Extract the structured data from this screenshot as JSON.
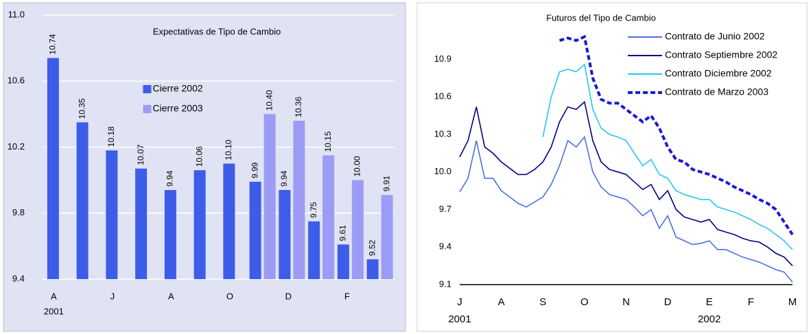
{
  "chart_data": [
    {
      "type": "bar",
      "title": "Expectativas de Tipo de Cambio",
      "categories": [
        "A",
        null,
        "J",
        null,
        "A",
        null,
        "O",
        null,
        "D",
        null,
        "F",
        null
      ],
      "year_label": "2001",
      "series": [
        {
          "name": "Cierre 2002",
          "color": "#3d5ce8",
          "values": [
            10.74,
            10.35,
            10.18,
            10.07,
            9.94,
            10.06,
            10.1,
            9.99,
            9.94,
            9.75,
            9.61,
            9.52
          ],
          "value_labels": [
            "10.74",
            "10.35",
            "10.18",
            "10.07",
            "9.94",
            "10.06",
            "10.10",
            "9.99",
            "9.94",
            "9.75",
            "9.61",
            "9.52"
          ]
        },
        {
          "name": "Cierre 2003",
          "color": "#9c9cf6",
          "values": [
            null,
            null,
            null,
            null,
            null,
            null,
            null,
            10.4,
            10.36,
            10.15,
            10.0,
            9.91
          ],
          "value_labels": [
            null,
            null,
            null,
            null,
            null,
            null,
            null,
            "10.40",
            "10.36",
            "10.15",
            "10.00",
            "9.91"
          ]
        }
      ],
      "ylim": [
        9.4,
        11.0
      ],
      "yticks": [
        9.4,
        9.8,
        10.2,
        10.6,
        {
          "value": 11.0,
          "label": "11.0"
        }
      ],
      "grid": true,
      "legend": "upper center"
    },
    {
      "type": "line",
      "title": "Futuros del Tipo de Cambio",
      "categories": [
        "J",
        null,
        null,
        null,
        null,
        "A",
        null,
        null,
        null,
        null,
        "S",
        null,
        null,
        null,
        null,
        "O",
        null,
        null,
        null,
        null,
        "N",
        null,
        null,
        null,
        null,
        "D",
        null,
        null,
        null,
        null,
        "E",
        null,
        null,
        null,
        null,
        "F",
        null,
        null,
        null,
        null,
        "M"
      ],
      "year_labels": [
        {
          "index": 0,
          "label": "2001"
        },
        {
          "index": 30,
          "label": "2002"
        }
      ],
      "series": [
        {
          "name": "Contrato de Junio 2002",
          "color": "#4a70e2",
          "style": "solid",
          "values": [
            9.84,
            9.95,
            10.25,
            9.95,
            9.95,
            9.85,
            9.8,
            9.75,
            9.72,
            9.76,
            9.8,
            9.9,
            10.05,
            10.25,
            10.2,
            10.28,
            10.0,
            9.88,
            9.82,
            9.8,
            9.78,
            9.72,
            9.65,
            9.7,
            9.55,
            9.65,
            9.48,
            9.45,
            9.42,
            9.43,
            9.45,
            9.38,
            9.38,
            9.35,
            9.32,
            9.3,
            9.28,
            9.25,
            9.22,
            9.2,
            9.12
          ]
        },
        {
          "name": "Contrato Septiembre 2002",
          "color": "#000080",
          "style": "solid",
          "values": [
            10.12,
            10.25,
            10.52,
            10.2,
            10.15,
            10.08,
            10.03,
            9.98,
            9.98,
            10.02,
            10.08,
            10.2,
            10.4,
            10.52,
            10.5,
            10.56,
            10.25,
            10.08,
            10.02,
            10.0,
            9.98,
            9.92,
            9.86,
            9.9,
            9.78,
            9.85,
            9.7,
            9.64,
            9.62,
            9.6,
            9.62,
            9.54,
            9.52,
            9.5,
            9.47,
            9.45,
            9.44,
            9.4,
            9.35,
            9.32,
            9.25
          ]
        },
        {
          "name": "Contrato Diciembre 2002",
          "color": "#22c8ec",
          "style": "solid",
          "values": [
            null,
            null,
            null,
            null,
            null,
            null,
            null,
            null,
            null,
            null,
            10.28,
            10.6,
            10.8,
            10.82,
            10.8,
            10.86,
            10.5,
            10.35,
            10.3,
            10.28,
            10.25,
            10.15,
            10.05,
            10.1,
            9.98,
            9.95,
            9.85,
            9.82,
            9.8,
            9.78,
            9.78,
            9.72,
            9.7,
            9.68,
            9.65,
            9.62,
            9.58,
            9.55,
            9.5,
            9.45,
            9.38
          ]
        },
        {
          "name": "Contrato de Marzo 2003",
          "color": "#1a1ad6",
          "style": "dashed",
          "values": [
            null,
            null,
            null,
            null,
            null,
            null,
            null,
            null,
            null,
            null,
            null,
            null,
            11.05,
            11.07,
            11.05,
            11.08,
            10.75,
            10.58,
            10.55,
            10.55,
            10.5,
            10.45,
            10.4,
            10.45,
            10.35,
            10.2,
            10.1,
            10.08,
            10.02,
            10.0,
            9.98,
            9.95,
            9.92,
            9.88,
            9.85,
            9.82,
            9.78,
            9.75,
            9.7,
            9.6,
            9.5
          ]
        }
      ],
      "ylim": [
        9.1,
        11.1
      ],
      "yticks": [
        9.1,
        9.4,
        9.7,
        {
          "value": 10.0,
          "label": "10.0"
        },
        10.3,
        10.6,
        10.9
      ],
      "grid": false,
      "legend": "upper right"
    }
  ]
}
